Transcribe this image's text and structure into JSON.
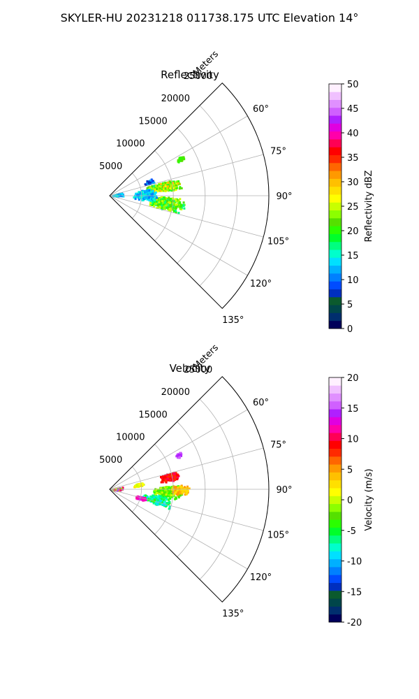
{
  "figure_title": "SKYLER-HU  20231218  011738.175 UTC Elevation 14°",
  "chart_data": [
    {
      "type": "polar-sector",
      "title": "Reflectivity",
      "range_label": "Meters",
      "range_ticks": [
        5000,
        10000,
        15000,
        20000,
        25000
      ],
      "azimuth_ticks": [
        "60°",
        "75°",
        "90°",
        "105°",
        "120°",
        "135°"
      ],
      "azimuth_range": [
        45,
        135
      ],
      "rlim": [
        0,
        25000
      ],
      "grid": true,
      "colorbar": {
        "label": "Reflectivity dBZ",
        "range": [
          0,
          50
        ],
        "ticks": [
          0,
          5,
          10,
          15,
          20,
          25,
          30,
          35,
          40,
          45,
          50
        ],
        "colors": [
          "#00005a",
          "#002e6e",
          "#00464a",
          "#0b5a2e",
          "#002fbf",
          "#004cff",
          "#0080ff",
          "#00b0ff",
          "#00e0ff",
          "#00ffcc",
          "#00ff7f",
          "#00ff2a",
          "#2aff00",
          "#55e000",
          "#8cff00",
          "#c8ff00",
          "#ffff00",
          "#ffe000",
          "#ffc000",
          "#ff9900",
          "#ff6600",
          "#ff2a00",
          "#ff0000",
          "#ff0055",
          "#ff00aa",
          "#e000e0",
          "#b020ff",
          "#d060ff",
          "#e090ff",
          "#f0c0ff",
          "#fff0ff"
        ]
      }
    },
    {
      "type": "polar-sector",
      "title": "Velocity",
      "range_label": "Meters",
      "range_ticks": [
        5000,
        10000,
        15000,
        20000,
        25000
      ],
      "azimuth_ticks": [
        "60°",
        "75°",
        "90°",
        "105°",
        "120°",
        "135°"
      ],
      "azimuth_range": [
        45,
        135
      ],
      "rlim": [
        0,
        25000
      ],
      "grid": true,
      "colorbar": {
        "label": "Velocity (m/s)",
        "range": [
          -20,
          20
        ],
        "ticks": [
          -20,
          -15,
          -10,
          -5,
          0,
          5,
          10,
          15,
          20
        ],
        "colors": [
          "#00005a",
          "#002e6e",
          "#00464a",
          "#0b5a2e",
          "#002fbf",
          "#004cff",
          "#0080ff",
          "#00b0ff",
          "#00e0ff",
          "#00ffcc",
          "#00ff7f",
          "#00ff2a",
          "#2aff00",
          "#55e000",
          "#8cff00",
          "#c8ff00",
          "#ffff00",
          "#ffe000",
          "#ffc000",
          "#ff9900",
          "#ff6600",
          "#ff2a00",
          "#ff0000",
          "#ff0055",
          "#ff00aa",
          "#e000e0",
          "#b020ff",
          "#d060ff",
          "#e090ff",
          "#f0c0ff",
          "#fff0ff"
        ]
      }
    }
  ]
}
